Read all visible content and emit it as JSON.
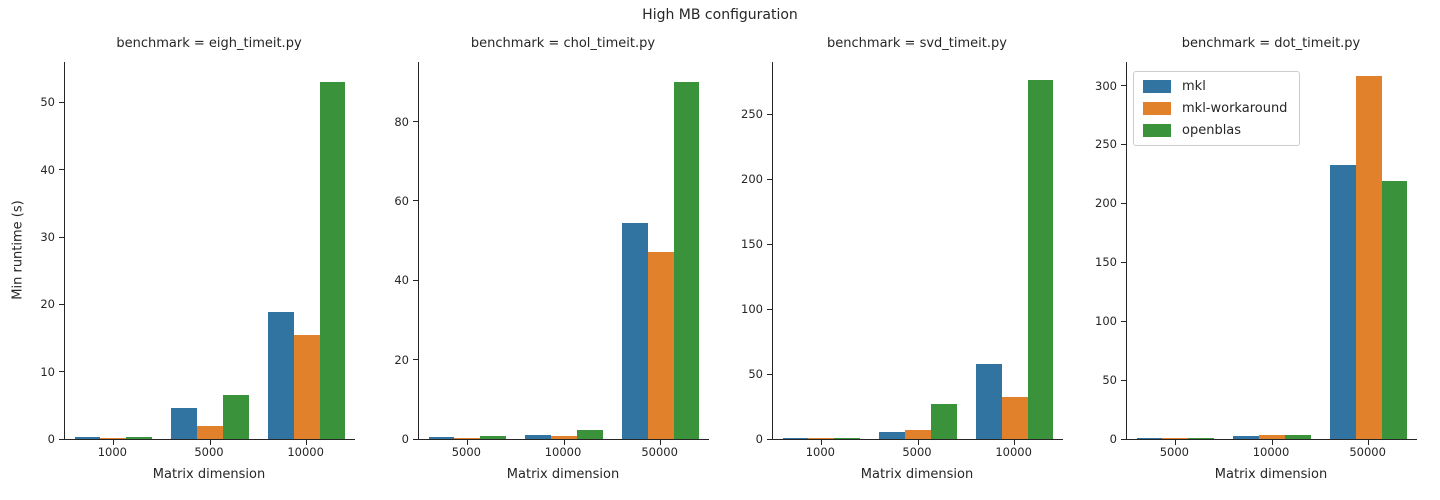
{
  "suptitle": "High MB configuration",
  "ylabel": "Min runtime (s)",
  "xlabel": "Matrix dimension",
  "legend": {
    "entries": [
      {
        "label": "mkl",
        "color": "#3274a1"
      },
      {
        "label": "mkl-workaround",
        "color": "#e1812c"
      },
      {
        "label": "openblas",
        "color": "#3a923a"
      }
    ],
    "position": "upper-left of fourth facet"
  },
  "chart_data": [
    {
      "type": "bar",
      "facet_title": "benchmark = eigh_timeit.py",
      "xlabel": "Matrix dimension",
      "ylabel": "Min runtime (s)",
      "categories": [
        "1000",
        "5000",
        "10000"
      ],
      "series": [
        {
          "name": "mkl",
          "color": "#3274a1",
          "values": [
            0.35,
            4.6,
            18.8
          ]
        },
        {
          "name": "mkl-workaround",
          "color": "#e1812c",
          "values": [
            0.15,
            1.9,
            15.4
          ]
        },
        {
          "name": "openblas",
          "color": "#3a923a",
          "values": [
            0.3,
            6.5,
            53
          ]
        }
      ],
      "yticks": [
        0,
        10,
        20,
        30,
        40,
        50
      ],
      "ylim": [
        0,
        56
      ],
      "grid": false
    },
    {
      "type": "bar",
      "facet_title": "benchmark = chol_timeit.py",
      "xlabel": "Matrix dimension",
      "categories": [
        "5000",
        "10000",
        "50000"
      ],
      "series": [
        {
          "name": "mkl",
          "color": "#3274a1",
          "values": [
            0.4,
            0.9,
            54.5
          ]
        },
        {
          "name": "mkl-workaround",
          "color": "#e1812c",
          "values": [
            0.3,
            0.8,
            47
          ]
        },
        {
          "name": "openblas",
          "color": "#3a923a",
          "values": [
            0.65,
            2.2,
            90
          ]
        }
      ],
      "yticks": [
        0,
        20,
        40,
        60,
        80
      ],
      "ylim": [
        0,
        95
      ],
      "grid": false
    },
    {
      "type": "bar",
      "facet_title": "benchmark = svd_timeit.py",
      "xlabel": "Matrix dimension",
      "categories": [
        "1000",
        "5000",
        "10000"
      ],
      "series": [
        {
          "name": "mkl",
          "color": "#3274a1",
          "values": [
            0.25,
            5.5,
            58
          ]
        },
        {
          "name": "mkl-workaround",
          "color": "#e1812c",
          "values": [
            0.2,
            6.8,
            32
          ]
        },
        {
          "name": "openblas",
          "color": "#3a923a",
          "values": [
            1.1,
            27,
            276
          ]
        }
      ],
      "yticks": [
        0,
        50,
        100,
        150,
        200,
        250
      ],
      "ylim": [
        0,
        290
      ],
      "grid": false
    },
    {
      "type": "bar",
      "facet_title": "benchmark = dot_timeit.py",
      "xlabel": "Matrix dimension",
      "categories": [
        "5000",
        "10000",
        "50000"
      ],
      "series": [
        {
          "name": "mkl",
          "color": "#3274a1",
          "values": [
            0.8,
            2.5,
            233
          ]
        },
        {
          "name": "mkl-workaround",
          "color": "#e1812c",
          "values": [
            0.9,
            3.3,
            308
          ]
        },
        {
          "name": "openblas",
          "color": "#3a923a",
          "values": [
            1.0,
            3.3,
            219
          ]
        }
      ],
      "yticks": [
        0,
        50,
        100,
        150,
        200,
        250,
        300
      ],
      "ylim": [
        0,
        320
      ],
      "grid": false
    }
  ]
}
